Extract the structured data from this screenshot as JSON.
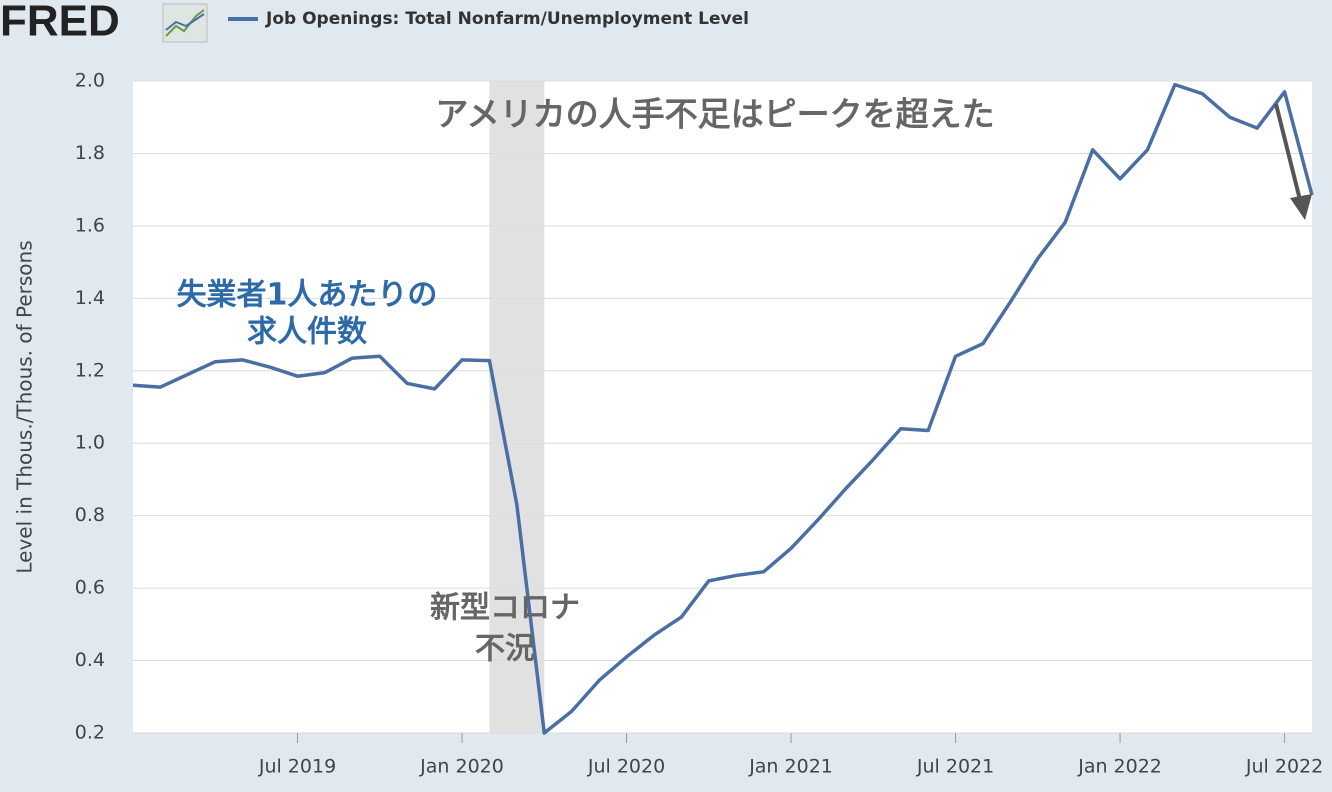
{
  "chart_data": {
    "type": "line",
    "logo": "FRED",
    "legend_label": "Job Openings: Total Nonfarm/Unemployment Level",
    "y_label": "Level in Thous./Thous. of Persons",
    "annotations": {
      "peak": "アメリカの人手不足はピークを超えた",
      "series_note": [
        "失業者1人あたりの",
        "求人件数"
      ],
      "recession_note": [
        "新型コロナ",
        "不況"
      ]
    },
    "x": [
      "2019-01",
      "2019-02",
      "2019-03",
      "2019-04",
      "2019-05",
      "2019-06",
      "2019-07",
      "2019-08",
      "2019-09",
      "2019-10",
      "2019-11",
      "2019-12",
      "2020-01",
      "2020-02",
      "2020-03",
      "2020-04",
      "2020-05",
      "2020-06",
      "2020-07",
      "2020-08",
      "2020-09",
      "2020-10",
      "2020-11",
      "2020-12",
      "2021-01",
      "2021-02",
      "2021-03",
      "2021-04",
      "2021-05",
      "2021-06",
      "2021-07",
      "2021-08",
      "2021-09",
      "2021-10",
      "2021-11",
      "2021-12",
      "2022-01",
      "2022-02",
      "2022-03",
      "2022-04",
      "2022-05",
      "2022-06",
      "2022-07",
      "2022-08"
    ],
    "series": [
      {
        "name": "Job Openings: Total Nonfarm/Unemployment Level",
        "color": "#4a6fa5",
        "values": [
          1.16,
          1.155,
          1.19,
          1.225,
          1.23,
          1.21,
          1.185,
          1.195,
          1.235,
          1.24,
          1.165,
          1.15,
          1.23,
          1.228,
          0.83,
          0.2,
          0.26,
          0.345,
          0.41,
          0.47,
          0.52,
          0.62,
          0.635,
          0.645,
          0.71,
          0.79,
          0.875,
          0.955,
          1.04,
          1.035,
          1.24,
          1.275,
          1.39,
          1.51,
          1.61,
          1.81,
          1.73,
          1.81,
          1.99,
          1.965,
          1.9,
          1.87,
          1.97,
          1.685
        ]
      }
    ],
    "xlim": [
      "2019-01",
      "2022-08"
    ],
    "xticks": [
      {
        "value": "2019-07",
        "label": "Jul 2019"
      },
      {
        "value": "2020-01",
        "label": "Jan 2020"
      },
      {
        "value": "2020-07",
        "label": "Jul 2020"
      },
      {
        "value": "2021-01",
        "label": "Jan 2021"
      },
      {
        "value": "2021-07",
        "label": "Jul 2021"
      },
      {
        "value": "2022-01",
        "label": "Jan 2022"
      },
      {
        "value": "2022-07",
        "label": "Jul 2022"
      }
    ],
    "ylim": [
      0.2,
      2.0
    ],
    "yticks": [
      0.2,
      0.4,
      0.6,
      0.8,
      {
        "value": 1.0,
        "label": "1.0"
      },
      1.2,
      1.4,
      1.6,
      1.8,
      {
        "value": 2.0,
        "label": "2.0"
      }
    ],
    "recessions": [
      [
        "2020-02",
        "2020-04"
      ]
    ],
    "recession_color": "#e1e1e1",
    "grid": true
  }
}
